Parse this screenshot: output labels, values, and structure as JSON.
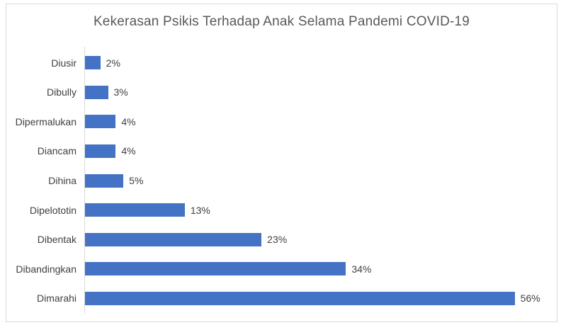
{
  "chart_data": {
    "type": "bar",
    "orientation": "horizontal",
    "title": "Kekerasan Psikis Terhadap Anak Selama Pandemi COVID-19",
    "categories": [
      "Diusir",
      "Dibully",
      "Dipermalukan",
      "Diancam",
      "Dihina",
      "Dipelototin",
      "Dibentak",
      "Dibandingkan",
      "Dimarahi"
    ],
    "values": [
      2,
      3,
      4,
      4,
      5,
      13,
      23,
      34,
      56
    ],
    "value_labels": [
      "2%",
      "3%",
      "4%",
      "4%",
      "5%",
      "13%",
      "23%",
      "34%",
      "56%"
    ],
    "xlabel": "",
    "ylabel": "",
    "xlim": [
      0,
      60
    ],
    "grid": false,
    "legend": false,
    "data_labels": true,
    "bar_color": "#4472C4",
    "axis_line_color": "#D9D9D9",
    "frame_border_color": "#D9D9D9",
    "title_color": "#595959",
    "label_color": "#404040"
  }
}
